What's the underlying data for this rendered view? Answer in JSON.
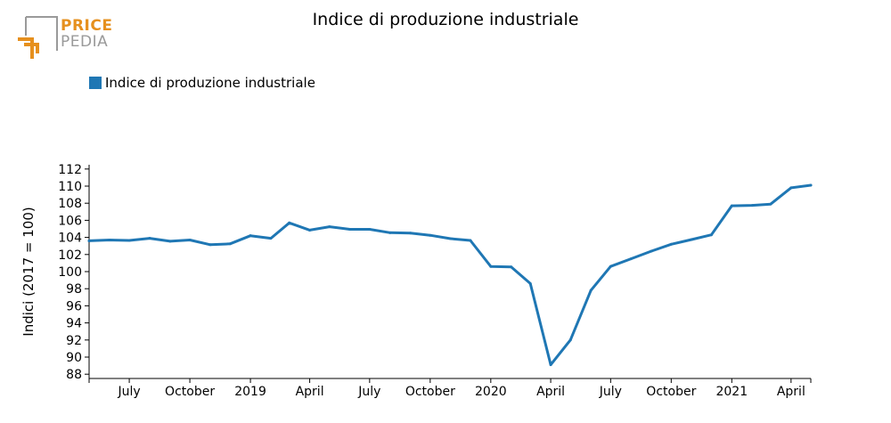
{
  "logo": {
    "word_1": "PRICE",
    "word_2": "PEDIA",
    "accent": "#e6901e",
    "gray": "#9a9a9a"
  },
  "chart_data": {
    "type": "line",
    "title": "Indice di produzione industriale",
    "xlabel": "",
    "ylabel": "Indici (2017 = 100)",
    "ylim": [
      87.5,
      112.5
    ],
    "yticks": [
      88,
      90,
      92,
      94,
      96,
      98,
      100,
      102,
      104,
      106,
      108,
      110,
      112
    ],
    "grid": false,
    "legend_placement": "top-left",
    "x_range": [
      "2018-05-01",
      "2021-05-01"
    ],
    "x_ticks": [
      {
        "date": "2018-07-01",
        "label": "July"
      },
      {
        "date": "2018-10-01",
        "label": "October"
      },
      {
        "date": "2019-01-01",
        "label": "2019"
      },
      {
        "date": "2019-04-01",
        "label": "April"
      },
      {
        "date": "2019-07-01",
        "label": "July"
      },
      {
        "date": "2019-10-01",
        "label": "October"
      },
      {
        "date": "2020-01-01",
        "label": "2020"
      },
      {
        "date": "2020-04-01",
        "label": "April"
      },
      {
        "date": "2020-07-01",
        "label": "July"
      },
      {
        "date": "2020-10-01",
        "label": "October"
      },
      {
        "date": "2021-01-01",
        "label": "2021"
      },
      {
        "date": "2021-04-01",
        "label": "April"
      }
    ],
    "series": [
      {
        "name": "Indice di produzione industriale",
        "color": "#1f77b4",
        "x": [
          "2018-05-01",
          "2018-06-01",
          "2018-07-01",
          "2018-08-01",
          "2018-09-01",
          "2018-10-01",
          "2018-11-01",
          "2018-12-01",
          "2019-01-01",
          "2019-02-01",
          "2019-03-01",
          "2019-04-01",
          "2019-05-01",
          "2019-06-01",
          "2019-07-01",
          "2019-08-01",
          "2019-09-01",
          "2019-10-01",
          "2019-11-01",
          "2019-12-01",
          "2020-01-01",
          "2020-02-01",
          "2020-03-01",
          "2020-04-01",
          "2020-05-01",
          "2020-06-01",
          "2020-07-01",
          "2020-08-01",
          "2020-09-01",
          "2020-10-01",
          "2020-11-01",
          "2020-12-01",
          "2021-01-01",
          "2021-02-01",
          "2021-03-01",
          "2021-04-01",
          "2021-05-01"
        ],
        "values": [
          103.6,
          103.7,
          103.65,
          103.9,
          103.55,
          103.7,
          103.15,
          103.25,
          104.2,
          103.9,
          105.7,
          104.85,
          105.25,
          104.95,
          104.95,
          104.55,
          104.5,
          104.25,
          103.85,
          103.65,
          100.6,
          100.55,
          98.6,
          89.1,
          92.0,
          97.8,
          100.6,
          101.5,
          102.4,
          103.2,
          103.75,
          104.3,
          107.7,
          107.75,
          107.9,
          109.8,
          110.1
        ]
      }
    ]
  }
}
